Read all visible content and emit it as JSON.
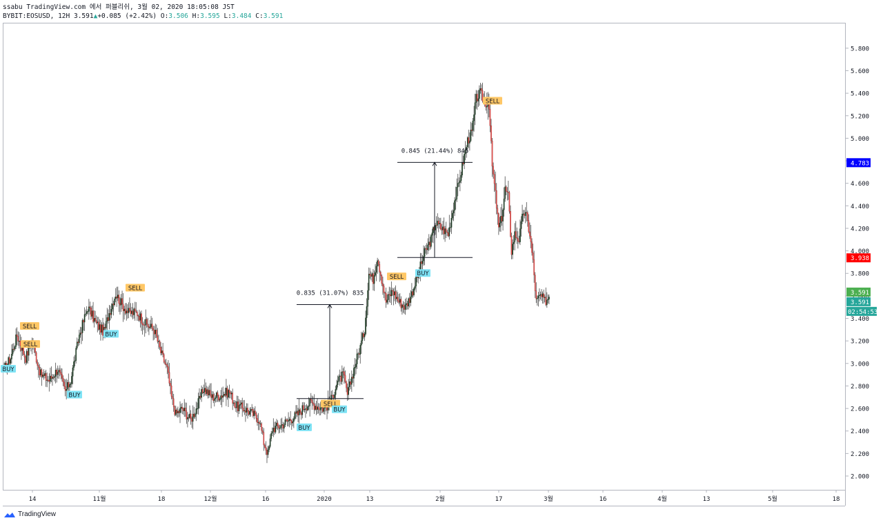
{
  "header": {
    "publisher_line": "ssabu TradingView.com 에서 퍼블리쉬, 3월 02, 2020 18:05:08 JST",
    "symbol": "BYBIT:EOSUSD, 12H",
    "last": "3.591",
    "change": "+0.085 (+2.42%)",
    "o_label": "O:",
    "o_value": "3.506",
    "h_label": "H:",
    "h_value": "3.595",
    "l_label": "L:",
    "l_value": "3.484",
    "c_label": "C:",
    "c_value": "3.591"
  },
  "brand": {
    "name": "TradingView"
  },
  "colors": {
    "up": "#26a69a",
    "down": "#ef5350",
    "candle_body": "#1e3323",
    "blue_tag": "#0000ff",
    "red_tag": "#ff0000",
    "green_tag": "#26a69a",
    "sell_signal": "#ffc766",
    "buy_signal": "#7fe3f5"
  },
  "chart_data": {
    "type": "candlestick",
    "title": "",
    "xlabel": "",
    "ylabel": "",
    "ylim": [
      1.84,
      5.94
    ],
    "y_ticks": [
      "5.800",
      "5.600",
      "5.400",
      "5.200",
      "5.000",
      "4.800",
      "4.600",
      "4.400",
      "4.200",
      "4.000",
      "3.800",
      "3.600",
      "3.400",
      "3.200",
      "3.000",
      "2.800",
      "2.600",
      "2.400",
      "2.200",
      "2.000"
    ],
    "x_ticks": [
      "14",
      "11월",
      "18",
      "12월",
      "16",
      "2020",
      "13",
      "2월",
      "17",
      "3월",
      "16",
      "4월",
      "13",
      "5월",
      "18"
    ],
    "price_tags": [
      {
        "label": "4.783",
        "value": 4.783,
        "color": "blue"
      },
      {
        "label": "3.938",
        "value": 3.938,
        "color": "red"
      },
      {
        "label": "3.591",
        "value": 3.591,
        "color": "green"
      },
      {
        "label": "3.591",
        "value": 3.591,
        "color": "teal"
      }
    ],
    "countdown": "02:54:53",
    "measurements": [
      {
        "label": "0.835 (31.07%) 835",
        "from": 2.688,
        "to": 3.523
      },
      {
        "label": "0.845 (21.44%) 845",
        "from": 3.941,
        "to": 4.786
      }
    ],
    "signals": [
      {
        "label": "BUY",
        "value": 2.95,
        "type": "buy"
      },
      {
        "label": "SELL",
        "value": 3.17,
        "type": "sell"
      },
      {
        "label": "BUY",
        "value": 2.72,
        "type": "buy"
      },
      {
        "label": "SELL",
        "value": 3.33,
        "type": "sell"
      },
      {
        "label": "BUY",
        "value": 3.26,
        "type": "buy"
      },
      {
        "label": "SELL",
        "value": 3.67,
        "type": "sell"
      },
      {
        "label": "BUY",
        "value": 2.43,
        "type": "buy"
      },
      {
        "label": "SELL",
        "value": 2.64,
        "type": "sell"
      },
      {
        "label": "BUY",
        "value": 2.59,
        "type": "buy"
      },
      {
        "label": "SELL",
        "value": 3.77,
        "type": "sell"
      },
      {
        "label": "BUY",
        "value": 3.8,
        "type": "buy"
      },
      {
        "label": "SELL",
        "value": 5.33,
        "type": "sell"
      }
    ],
    "anchors": [
      [
        0,
        2.95
      ],
      [
        6,
        3.05
      ],
      [
        12,
        3.25
      ],
      [
        20,
        3.05
      ],
      [
        26,
        3.2
      ],
      [
        34,
        2.9
      ],
      [
        42,
        2.85
      ],
      [
        50,
        2.95
      ],
      [
        57,
        2.75
      ],
      [
        62,
        2.85
      ],
      [
        70,
        3.25
      ],
      [
        78,
        3.5
      ],
      [
        86,
        3.35
      ],
      [
        93,
        3.28
      ],
      [
        98,
        3.45
      ],
      [
        104,
        3.62
      ],
      [
        110,
        3.52
      ],
      [
        116,
        3.45
      ],
      [
        124,
        3.45
      ],
      [
        132,
        3.35
      ],
      [
        140,
        3.3
      ],
      [
        146,
        3.1
      ],
      [
        152,
        2.95
      ],
      [
        156,
        2.7
      ],
      [
        160,
        2.55
      ],
      [
        166,
        2.6
      ],
      [
        174,
        2.5
      ],
      [
        180,
        2.62
      ],
      [
        186,
        2.78
      ],
      [
        194,
        2.7
      ],
      [
        202,
        2.72
      ],
      [
        210,
        2.75
      ],
      [
        216,
        2.62
      ],
      [
        224,
        2.6
      ],
      [
        232,
        2.55
      ],
      [
        238,
        2.5
      ],
      [
        242,
        2.3
      ],
      [
        246,
        2.2
      ],
      [
        250,
        2.42
      ],
      [
        258,
        2.45
      ],
      [
        266,
        2.5
      ],
      [
        274,
        2.55
      ],
      [
        280,
        2.62
      ],
      [
        286,
        2.65
      ],
      [
        292,
        2.62
      ],
      [
        298,
        2.6
      ],
      [
        304,
        2.65
      ],
      [
        310,
        2.82
      ],
      [
        316,
        2.9
      ],
      [
        320,
        2.72
      ],
      [
        326,
        2.95
      ],
      [
        332,
        3.15
      ],
      [
        336,
        3.3
      ],
      [
        340,
        3.8
      ],
      [
        344,
        3.75
      ],
      [
        348,
        3.95
      ],
      [
        352,
        3.75
      ],
      [
        356,
        3.55
      ],
      [
        362,
        3.65
      ],
      [
        368,
        3.55
      ],
      [
        374,
        3.5
      ],
      [
        380,
        3.62
      ],
      [
        386,
        3.8
      ],
      [
        392,
        3.98
      ],
      [
        398,
        4.1
      ],
      [
        402,
        4.25
      ],
      [
        408,
        4.2
      ],
      [
        414,
        4.15
      ],
      [
        420,
        4.45
      ],
      [
        424,
        4.6
      ],
      [
        428,
        4.8
      ],
      [
        432,
        4.98
      ],
      [
        436,
        5.05
      ],
      [
        440,
        5.35
      ],
      [
        444,
        5.4
      ],
      [
        448,
        5.32
      ],
      [
        452,
        5.3
      ],
      [
        455,
        4.75
      ],
      [
        458,
        4.5
      ],
      [
        461,
        4.2
      ],
      [
        464,
        4.3
      ],
      [
        467,
        4.55
      ],
      [
        470,
        4.48
      ],
      [
        473,
        4.0
      ],
      [
        476,
        4.15
      ],
      [
        480,
        4.1
      ],
      [
        484,
        4.35
      ],
      [
        487,
        4.3
      ],
      [
        490,
        4.15
      ],
      [
        493,
        3.9
      ],
      [
        496,
        3.55
      ],
      [
        500,
        3.6
      ],
      [
        504,
        3.55
      ],
      [
        508,
        3.591
      ]
    ],
    "total_bars": 509,
    "seed": 17
  }
}
